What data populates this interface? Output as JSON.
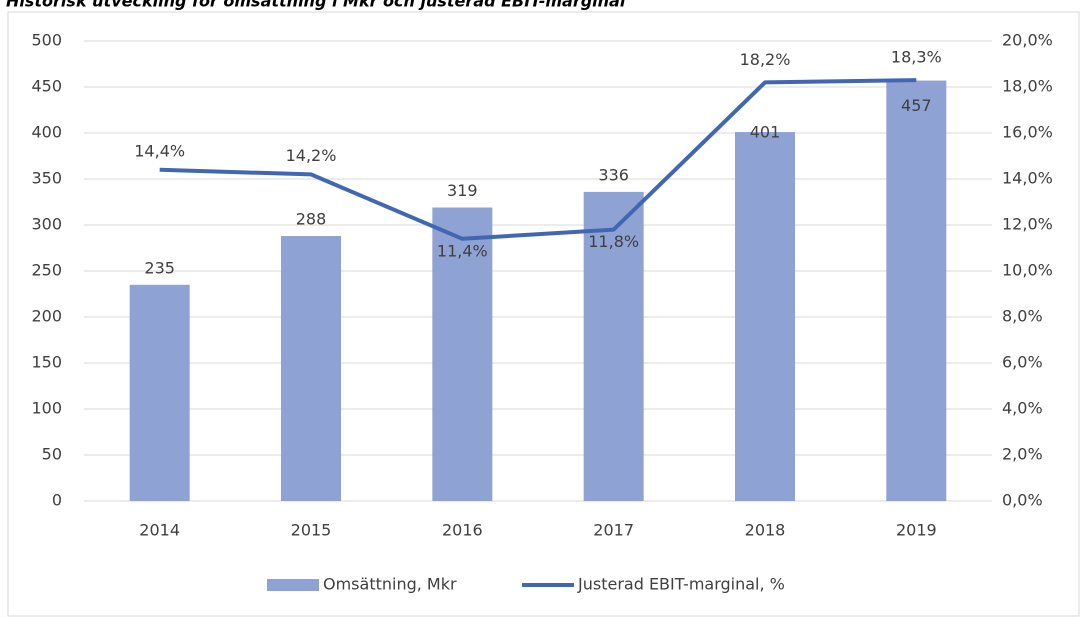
{
  "chart_data": {
    "type": "bar-line",
    "title": "Historisk utveckling för omsättning i Mkr och justerad EBIT-marginal",
    "categories": [
      "2014",
      "2015",
      "2016",
      "2017",
      "2018",
      "2019"
    ],
    "series": [
      {
        "name": "Omsättning, Mkr",
        "type": "bar",
        "color": "#8fa2d4",
        "values": [
          235,
          288,
          319,
          336,
          401,
          457
        ]
      },
      {
        "name": "Justerad EBIT-marginal, %",
        "type": "line",
        "axis": "y2",
        "color": "#4267b2",
        "values": [
          14.4,
          14.2,
          11.4,
          11.8,
          18.2,
          18.3
        ],
        "value_labels": [
          "14,4%",
          "14,2%",
          "11,4%",
          "11,8%",
          "18,2%",
          "18,3%"
        ]
      }
    ],
    "ylim": [
      0,
      500
    ],
    "yticks": [
      0,
      50,
      100,
      150,
      200,
      250,
      300,
      350,
      400,
      450,
      500
    ],
    "y2lim": [
      0,
      20
    ],
    "y2ticks": [
      {
        "value": 0,
        "label": "0,0%"
      },
      {
        "value": 2,
        "label": "2,0%"
      },
      {
        "value": 4,
        "label": "4,0%"
      },
      {
        "value": 6,
        "label": "6,0%"
      },
      {
        "value": 8,
        "label": "8,0%"
      },
      {
        "value": 10,
        "label": "10,0%"
      },
      {
        "value": 12,
        "label": "12,0%"
      },
      {
        "value": 14,
        "label": "14,0%"
      },
      {
        "value": 16,
        "label": "16,0%"
      },
      {
        "value": 18,
        "label": "18,0%"
      },
      {
        "value": 20,
        "label": "20,0%"
      }
    ],
    "grid": true,
    "legend": "bottom"
  }
}
